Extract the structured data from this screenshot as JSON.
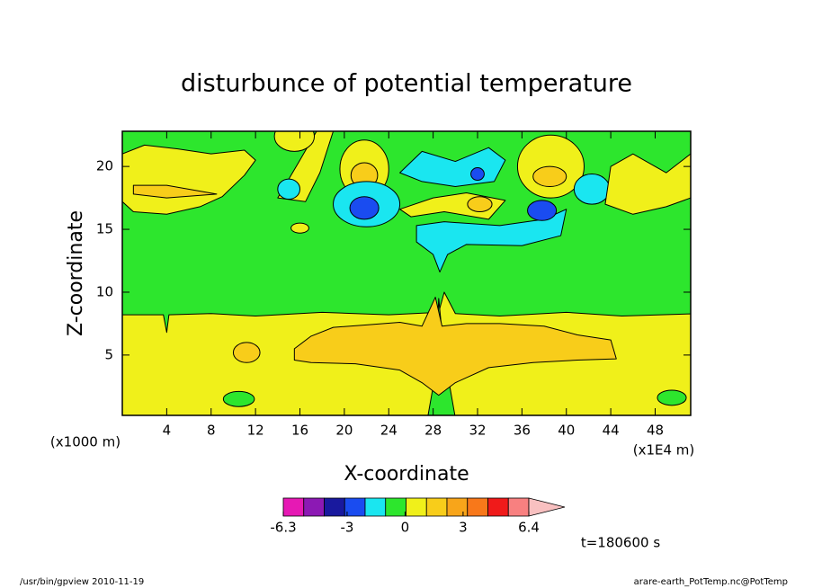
{
  "chart_data": {
    "type": "contour",
    "title": "disturbunce of potential temperature",
    "x_label": "X-coordinate",
    "y_label": "Z-coordinate",
    "x_unit": "(x1000 m)",
    "x_scale_note": "(x1E4 m)",
    "time_label": "t=180600 s",
    "xlim": [
      0,
      51.2
    ],
    "xticks": [
      4,
      8,
      12,
      16,
      20,
      24,
      28,
      32,
      36,
      40,
      44,
      48
    ],
    "ylim": [
      0.2,
      22.8
    ],
    "yticks": [
      5,
      10,
      15,
      20
    ],
    "colorbar": {
      "lim": [
        -6.3,
        6.4
      ],
      "ticks": [
        -6.3,
        -3,
        0,
        3,
        6.4
      ],
      "colors": [
        "#e619b4",
        "#8c19b4",
        "#19199e",
        "#1a4cf0",
        "#1ae6f0",
        "#2de62d",
        "#f0f01a",
        "#f8cd1a",
        "#f8a51a",
        "#f8781a",
        "#f01a1a",
        "#f88080",
        "#f8c0c0"
      ]
    }
  },
  "footer": {
    "left": "/usr/bin/gpview  2010-11-19",
    "right": "arare-earth_PotTemp.nc@PotTemp"
  }
}
